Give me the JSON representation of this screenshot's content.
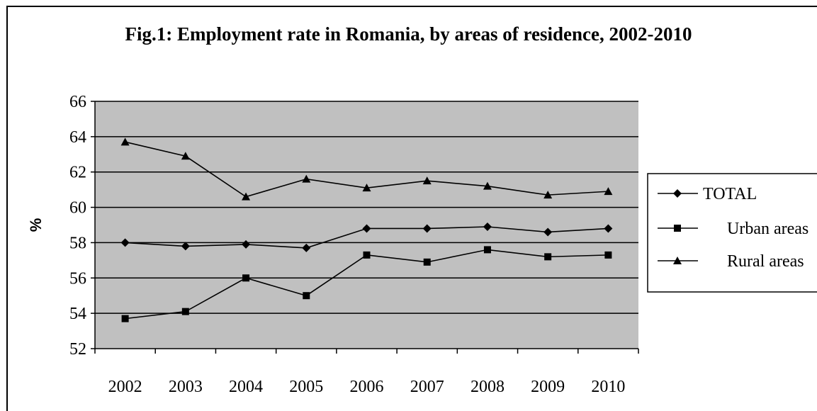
{
  "chart_data": {
    "type": "line",
    "title": "Fig.1: Employment rate in Romania, by areas of residence, 2002-2010",
    "xlabel": "",
    "ylabel": "%",
    "categories": [
      "2002",
      "2003",
      "2004",
      "2005",
      "2006",
      "2007",
      "2008",
      "2009",
      "2010"
    ],
    "ylim": [
      52,
      66
    ],
    "yticks": [
      52,
      54,
      56,
      58,
      60,
      62,
      64,
      66
    ],
    "grid": true,
    "legend_position": "right",
    "plot_background": "#c0c0c0",
    "series": [
      {
        "name": "TOTAL",
        "marker": "diamond",
        "values": [
          58.0,
          57.8,
          57.9,
          57.7,
          58.8,
          58.8,
          58.9,
          58.6,
          58.8
        ]
      },
      {
        "name": "Urban areas",
        "marker": "square",
        "values": [
          53.7,
          54.1,
          56.0,
          55.0,
          57.3,
          56.9,
          57.6,
          57.2,
          57.3
        ]
      },
      {
        "name": "Rural areas",
        "marker": "triangle",
        "values": [
          63.7,
          62.9,
          60.6,
          61.6,
          61.1,
          61.5,
          61.2,
          60.7,
          60.9
        ]
      }
    ]
  }
}
